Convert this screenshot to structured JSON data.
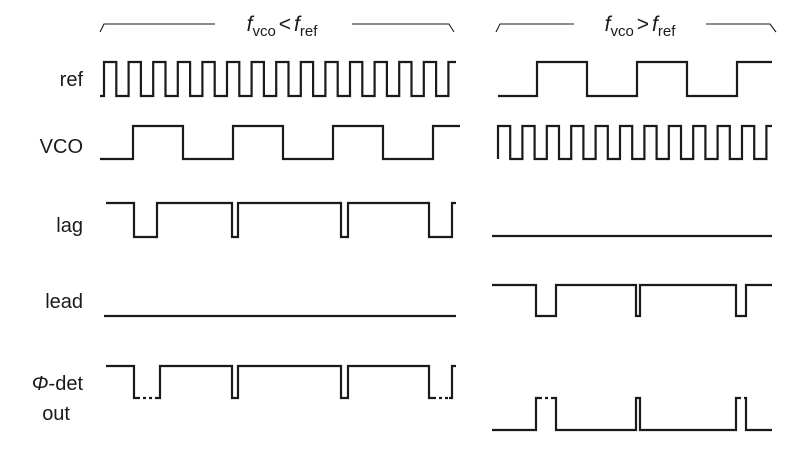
{
  "headers": {
    "left": {
      "var": "f",
      "sub1": "vco",
      "op": "<",
      "sub2": "ref"
    },
    "right": {
      "var": "f",
      "sub1": "vco",
      "op": ">",
      "sub2": "ref"
    }
  },
  "labels": {
    "ref": "ref",
    "vco": "VCO",
    "lag": "lag",
    "lead": "lead",
    "phi_symbol": "Φ",
    "phi_rest": "-det",
    "phi_line2": "out"
  }
}
